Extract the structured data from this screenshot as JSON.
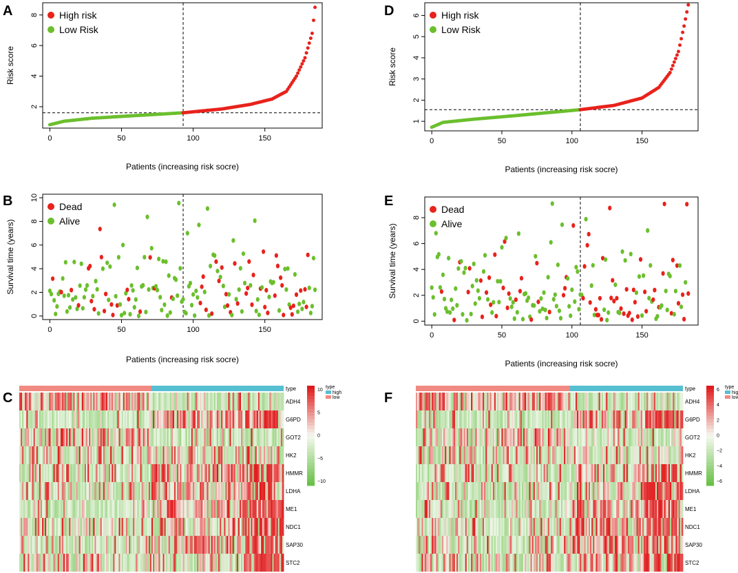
{
  "colors": {
    "high": "#e8221c",
    "low": "#6bbf2d",
    "dead": "#e8221c",
    "alive": "#6bbf2d",
    "type_high": "#56bfd0",
    "type_low": "#f08a82"
  },
  "panels": {
    "A": {
      "letter": "A"
    },
    "B": {
      "letter": "B"
    },
    "C": {
      "letter": "C"
    },
    "D": {
      "letter": "D"
    },
    "E": {
      "letter": "E"
    },
    "F": {
      "letter": "F"
    }
  },
  "chart_data": [
    {
      "id": "A",
      "type": "scatter",
      "title": "",
      "xlabel": "Patients (increasing risk socre)",
      "ylabel": "Risk score",
      "xlim": [
        -5,
        190
      ],
      "ylim": [
        0.6,
        8.8
      ],
      "xticks": [
        0,
        50,
        100,
        150
      ],
      "yticks": [
        2,
        4,
        6,
        8
      ],
      "n": 186,
      "cutoff_index": 93,
      "cutoff_value": 1.6,
      "legend": [
        "High risk",
        "Low Risk"
      ],
      "legend_position": "top-left",
      "anchors": [
        [
          0,
          0.82
        ],
        [
          10,
          1.05
        ],
        [
          30,
          1.25
        ],
        [
          60,
          1.42
        ],
        [
          93,
          1.6
        ],
        [
          120,
          1.85
        ],
        [
          140,
          2.15
        ],
        [
          155,
          2.5
        ],
        [
          165,
          3.0
        ],
        [
          172,
          4.0
        ],
        [
          178,
          5.2
        ],
        [
          183,
          6.8
        ],
        [
          185,
          8.5
        ]
      ]
    },
    {
      "id": "B",
      "type": "scatter",
      "title": "",
      "xlabel": "Patients (increasing risk socre)",
      "ylabel": "Survival time (years)",
      "xlim": [
        -5,
        190
      ],
      "ylim": [
        -0.3,
        10.3
      ],
      "xticks": [
        0,
        50,
        100,
        150
      ],
      "yticks": [
        0,
        2,
        4,
        6,
        8,
        10
      ],
      "n": 186,
      "cutoff_index": 93,
      "legend": [
        "Dead",
        "Alive"
      ],
      "legend_position": "top-left",
      "seed": 17,
      "dead_rate_low": 0.2,
      "dead_rate_high": 0.48
    },
    {
      "id": "C",
      "type": "heatmap",
      "genes": [
        "ADH4",
        "G6PD",
        "GOT2",
        "HK2",
        "HMMR",
        "LDHA",
        "ME1",
        "NDC1",
        "SAP30",
        "STC2"
      ],
      "type_label": "type",
      "type_legend": [
        "high",
        "low"
      ],
      "colorbar_ticks": [
        "10",
        "5",
        "0",
        "−5",
        "−10"
      ],
      "n": 186,
      "low_count": 93,
      "seed": 5,
      "high_up": [
        0.2,
        0.8,
        0.25,
        0.5,
        0.75,
        0.7,
        0.75,
        0.7,
        0.7,
        0.55
      ]
    },
    {
      "id": "D",
      "type": "scatter",
      "title": "",
      "xlabel": "Patients (increasing risk socre)",
      "ylabel": "Risk score",
      "xlim": [
        -5,
        190
      ],
      "ylim": [
        0.55,
        6.6
      ],
      "xticks": [
        0,
        50,
        100,
        150
      ],
      "yticks": [
        1,
        2,
        3,
        4,
        5,
        6
      ],
      "n": 184,
      "cutoff_index": 106,
      "cutoff_value": 1.55,
      "legend": [
        "High risk",
        "Low Risk"
      ],
      "legend_position": "top-left",
      "anchors": [
        [
          0,
          0.72
        ],
        [
          8,
          0.95
        ],
        [
          30,
          1.1
        ],
        [
          60,
          1.27
        ],
        [
          106,
          1.55
        ],
        [
          130,
          1.75
        ],
        [
          150,
          2.1
        ],
        [
          162,
          2.6
        ],
        [
          170,
          3.3
        ],
        [
          176,
          4.3
        ],
        [
          180,
          5.5
        ],
        [
          183,
          6.5
        ]
      ]
    },
    {
      "id": "E",
      "type": "scatter",
      "title": "",
      "xlabel": "Patients (increasing risk socre)",
      "ylabel": "Survival time (years)",
      "xlim": [
        -5,
        190
      ],
      "ylim": [
        -0.3,
        9.6
      ],
      "xticks": [
        0,
        50,
        100,
        150
      ],
      "yticks": [
        0,
        2,
        4,
        6,
        8
      ],
      "n": 184,
      "cutoff_index": 106,
      "legend": [
        "Dead",
        "Alive"
      ],
      "legend_position": "top-left",
      "seed": 41,
      "dead_rate_low": 0.22,
      "dead_rate_high": 0.5
    },
    {
      "id": "F",
      "type": "heatmap",
      "genes": [
        "ADH4",
        "G6PD",
        "GOT2",
        "HK2",
        "HMMR",
        "LDHA",
        "ME1",
        "NDC1",
        "SAP30",
        "STC2"
      ],
      "type_label": "type",
      "type_legend": [
        "high",
        "low"
      ],
      "colorbar_ticks": [
        "6",
        "4",
        "2",
        "0",
        "−2",
        "−4",
        "−6"
      ],
      "n": 184,
      "low_count": 106,
      "seed": 9,
      "high_up": [
        0.2,
        0.75,
        0.25,
        0.5,
        0.75,
        0.7,
        0.75,
        0.7,
        0.7,
        0.6
      ]
    }
  ]
}
